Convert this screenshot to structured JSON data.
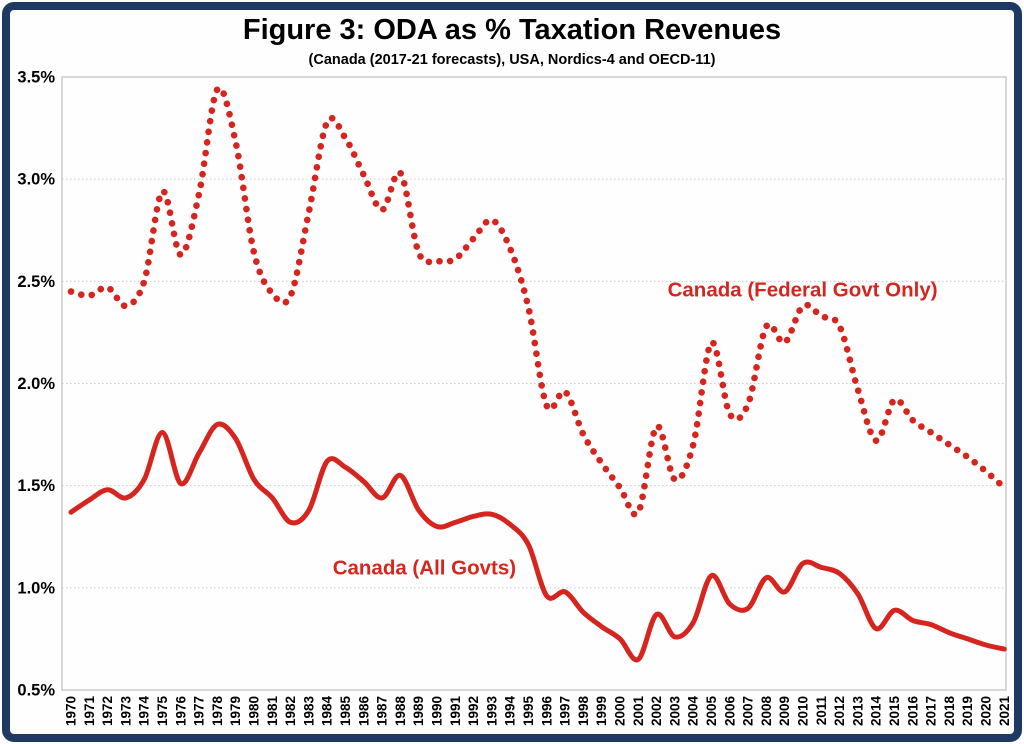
{
  "figure": {
    "title": "Figure 3: ODA as % Taxation Revenues",
    "subtitle": "(Canada (2017-21 forecasts), USA, Nordics-4 and OECD-11)"
  },
  "colors": {
    "series_red": "#d6251e",
    "frame_navy": "#1e3a62",
    "grid_gray": "#c9c9c9",
    "plot_border": "#c0c0c0",
    "axis_text": "#000000"
  },
  "chart_data": {
    "type": "line",
    "title": "Figure 3: ODA as % Taxation Revenues",
    "subtitle": "(Canada (2017-21 forecasts), USA, Nordics-4 and OECD-11)",
    "x": [
      1970,
      1971,
      1972,
      1973,
      1974,
      1975,
      1976,
      1977,
      1978,
      1979,
      1980,
      1981,
      1982,
      1983,
      1984,
      1985,
      1986,
      1987,
      1988,
      1989,
      1990,
      1991,
      1992,
      1993,
      1994,
      1995,
      1996,
      1997,
      1998,
      1999,
      2000,
      2001,
      2002,
      2003,
      2004,
      2005,
      2006,
      2007,
      2008,
      2009,
      2010,
      2011,
      2012,
      2013,
      2014,
      2015,
      2016,
      2017,
      2018,
      2019,
      2020,
      2021
    ],
    "series": [
      {
        "name": "Canada (Federal Govt Only)",
        "line_style": "dotted",
        "color": "#d6251e",
        "values": [
          2.45,
          2.43,
          2.47,
          2.38,
          2.5,
          2.94,
          2.63,
          2.93,
          3.44,
          3.18,
          2.64,
          2.44,
          2.43,
          2.84,
          3.28,
          3.2,
          3.02,
          2.85,
          3.03,
          2.64,
          2.6,
          2.61,
          2.71,
          2.8,
          2.66,
          2.37,
          1.89,
          1.96,
          1.75,
          1.61,
          1.49,
          1.37,
          1.79,
          1.53,
          1.7,
          2.2,
          1.85,
          1.9,
          2.28,
          2.2,
          2.38,
          2.33,
          2.28,
          1.97,
          1.72,
          1.92,
          1.82,
          1.76,
          1.7,
          1.64,
          1.57,
          1.49
        ]
      },
      {
        "name": "Canada (All Govts)",
        "line_style": "solid",
        "color": "#d6251e",
        "values": [
          1.37,
          1.43,
          1.48,
          1.44,
          1.53,
          1.76,
          1.51,
          1.66,
          1.8,
          1.73,
          1.53,
          1.44,
          1.32,
          1.38,
          1.62,
          1.59,
          1.52,
          1.44,
          1.55,
          1.38,
          1.3,
          1.32,
          1.35,
          1.36,
          1.31,
          1.21,
          0.96,
          0.98,
          0.88,
          0.81,
          0.75,
          0.65,
          0.87,
          0.76,
          0.83,
          1.06,
          0.92,
          0.9,
          1.05,
          0.98,
          1.12,
          1.1,
          1.07,
          0.97,
          0.8,
          0.89,
          0.84,
          0.82,
          0.78,
          0.75,
          0.72,
          0.7
        ]
      }
    ],
    "ylim": [
      0.5,
      3.5
    ],
    "ytick_values": [
      0.5,
      1.0,
      1.5,
      2.0,
      2.5,
      3.0,
      3.5
    ],
    "ytick_labels": [
      "0.5%",
      "1.0%",
      "1.5%",
      "2.0%",
      "2.5%",
      "3.0%",
      "3.5%"
    ],
    "xlabel": "",
    "ylabel": "",
    "grid": "horizontal-dotted",
    "legend_position": "inline-annotations",
    "annotations": [
      {
        "text": "Canada (Federal Govt Only)",
        "x": 2002.6,
        "y": 2.46,
        "anchor": "start"
      },
      {
        "text": "Canada (All Govts)",
        "x": 1984.3,
        "y": 1.1,
        "anchor": "start"
      }
    ]
  }
}
